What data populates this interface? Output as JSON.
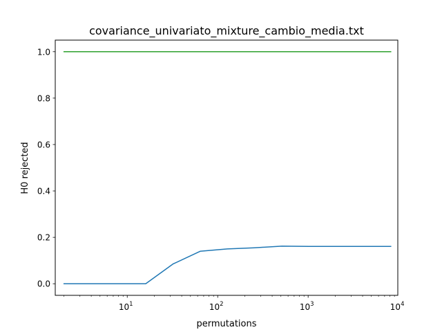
{
  "chart_data": {
    "type": "line",
    "title": "covariance_univariato_mixture_cambio_media.txt",
    "xlabel": "permutations",
    "ylabel": "H0 rejected",
    "xscale": "log",
    "xlim": [
      1.6,
      9800
    ],
    "ylim": [
      -0.05,
      1.05
    ],
    "grid": false,
    "legend": "none",
    "x_ticks": [
      {
        "value": 10,
        "base": "10",
        "exp": "1"
      },
      {
        "value": 100,
        "base": "10",
        "exp": "2"
      },
      {
        "value": 1000,
        "base": "10",
        "exp": "3"
      },
      {
        "value": 10000,
        "base": "10",
        "exp": "4"
      }
    ],
    "y_ticks": [
      {
        "value": 0.0,
        "label": "0.0"
      },
      {
        "value": 0.2,
        "label": "0.2"
      },
      {
        "value": 0.4,
        "label": "0.4"
      },
      {
        "value": 0.6,
        "label": "0.6"
      },
      {
        "value": 0.8,
        "label": "0.8"
      },
      {
        "value": 1.0,
        "label": "1.0"
      }
    ],
    "x": [
      2,
      4,
      8,
      16,
      32,
      64,
      128,
      256,
      512,
      1024,
      2048,
      4096,
      8192
    ],
    "series": [
      {
        "color": "#2ca02c",
        "values": [
          1,
          1,
          1,
          1,
          1,
          1,
          1,
          1,
          1,
          1,
          1,
          1,
          1
        ]
      },
      {
        "color": "#1f77b4",
        "values": [
          0,
          0,
          0,
          0,
          0.085,
          0.14,
          0.15,
          0.155,
          0.162,
          0.161,
          0.161,
          0.161,
          0.161
        ]
      }
    ]
  }
}
